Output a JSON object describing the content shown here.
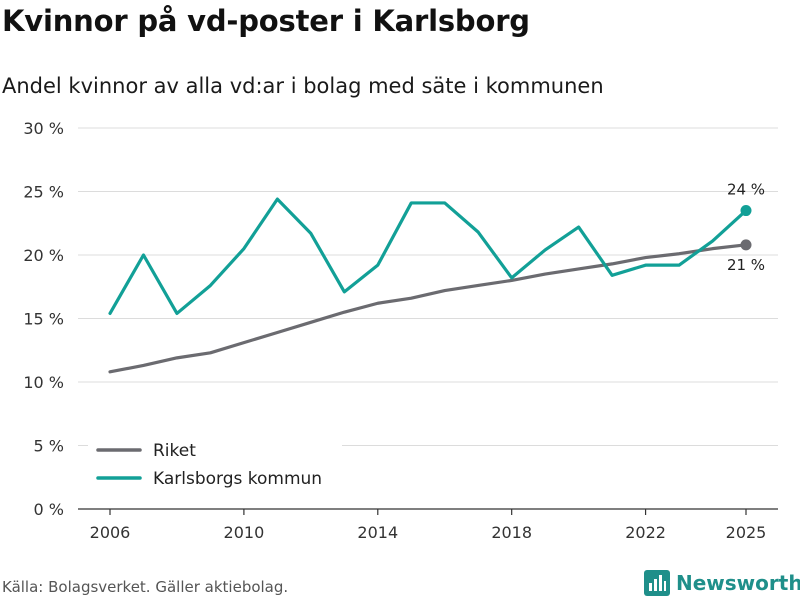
{
  "title": "Kvinnor på vd-poster i Karlsborg",
  "subtitle": "Andel kvinnor av alla vd:ar i bolag med säte i kommunen",
  "source": "Källa: Bolagsverket. Gäller aktiebolag.",
  "brand": "Newsworthy",
  "chart_data": {
    "type": "line",
    "x": [
      2006,
      2007,
      2008,
      2009,
      2010,
      2011,
      2012,
      2013,
      2014,
      2015,
      2016,
      2017,
      2018,
      2019,
      2020,
      2021,
      2022,
      2023,
      2024,
      2025
    ],
    "series": [
      {
        "name": "Riket",
        "color": "#6b6b70",
        "values": [
          10.8,
          11.3,
          11.9,
          12.3,
          13.1,
          13.9,
          14.7,
          15.5,
          16.2,
          16.6,
          17.2,
          17.6,
          18.0,
          18.5,
          18.9,
          19.3,
          19.8,
          20.1,
          20.5,
          20.8
        ],
        "end_label": "21 %"
      },
      {
        "name": "Karlsborgs kommun",
        "color": "#12a097",
        "values": [
          15.4,
          20.0,
          15.4,
          17.6,
          20.5,
          24.4,
          21.7,
          17.1,
          19.2,
          24.1,
          24.1,
          21.8,
          18.2,
          20.4,
          22.2,
          18.4,
          19.2,
          19.2,
          21.1,
          23.5
        ],
        "end_label": "24 %"
      }
    ],
    "y_ticks": [
      "0 %",
      "5 %",
      "10 %",
      "15 %",
      "20 %",
      "25 %",
      "30 %"
    ],
    "y_tick_values": [
      0,
      5,
      10,
      15,
      20,
      25,
      30
    ],
    "x_ticks": [
      2006,
      2010,
      2014,
      2018,
      2022,
      2025
    ],
    "ylim": [
      0,
      30
    ],
    "xlim": [
      2006,
      2025
    ],
    "grid": true,
    "legend_position": "bottom-left"
  }
}
